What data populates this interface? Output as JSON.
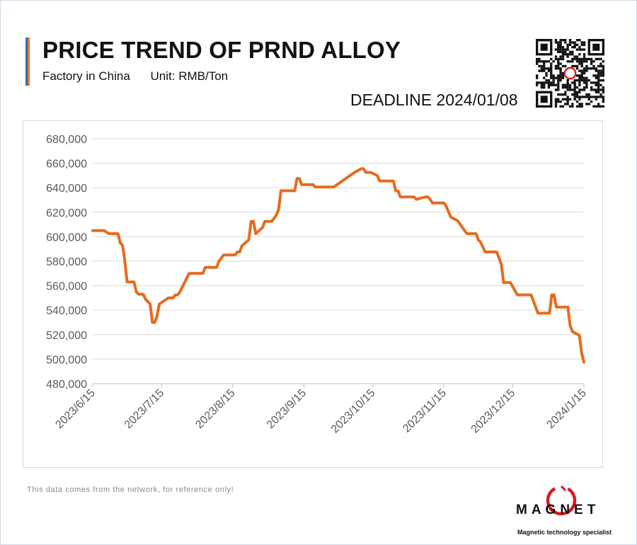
{
  "header": {
    "title": "PRICE TREND OF PRND ALLOY",
    "subtitle_left": "Factory in China",
    "subtitle_right": "Unit: RMB/Ton",
    "deadline": "DEADLINE 2024/01/08"
  },
  "footer": {
    "note": "This data comes from the network, for reference only!",
    "logo_text": "MAGNET",
    "logo_tagline": "Magnetic technology specialist"
  },
  "colors": {
    "line": "#e56b1f",
    "accent_blue": "#2f6db6",
    "accent_orange": "#e8722a",
    "grid": "#d9d9d9",
    "axis_text": "#595959",
    "logo_red": "#d71920"
  },
  "chart_data": {
    "type": "line",
    "title": "PRICE TREND OF PRND ALLOY",
    "xlabel": "",
    "ylabel": "",
    "ylim": [
      480000,
      680000
    ],
    "y_ticks": [
      480000,
      500000,
      520000,
      540000,
      560000,
      580000,
      600000,
      620000,
      640000,
      660000,
      680000
    ],
    "y_tick_labels": [
      "480,000",
      "500,000",
      "520,000",
      "540,000",
      "560,000",
      "580,000",
      "600,000",
      "620,000",
      "640,000",
      "660,000",
      "680,000"
    ],
    "xlim": [
      "2023-06-15",
      "2024-01-15"
    ],
    "x_ticks": [
      "2023-06-15",
      "2023-07-15",
      "2023-08-15",
      "2023-09-15",
      "2023-10-15",
      "2023-11-15",
      "2023-12-15",
      "2024-01-15"
    ],
    "x_tick_labels": [
      "2023/6/15",
      "2023/7/15",
      "2023/8/15",
      "2023/9/15",
      "2023/10/15",
      "2023/11/15",
      "2023/12/15",
      "2024/1/15"
    ],
    "grid": "horizontal",
    "legend": "none",
    "series": [
      {
        "points": [
          [
            "2023-06-15",
            605000
          ],
          [
            "2023-06-20",
            605000
          ],
          [
            "2023-06-22",
            602500
          ],
          [
            "2023-06-26",
            602500
          ],
          [
            "2023-06-27",
            595000
          ],
          [
            "2023-06-28",
            593000
          ],
          [
            "2023-06-29",
            580000
          ],
          [
            "2023-06-30",
            563000
          ],
          [
            "2023-07-03",
            563000
          ],
          [
            "2023-07-04",
            555000
          ],
          [
            "2023-07-05",
            553000
          ],
          [
            "2023-07-07",
            553000
          ],
          [
            "2023-07-08",
            549000
          ],
          [
            "2023-07-10",
            545000
          ],
          [
            "2023-07-11",
            530000
          ],
          [
            "2023-07-12",
            530000
          ],
          [
            "2023-07-13",
            535000
          ],
          [
            "2023-07-14",
            545000
          ],
          [
            "2023-07-18",
            550000
          ],
          [
            "2023-07-20",
            550000
          ],
          [
            "2023-07-21",
            552500
          ],
          [
            "2023-07-22",
            552500
          ],
          [
            "2023-07-23",
            555000
          ],
          [
            "2023-07-27",
            570000
          ],
          [
            "2023-08-02",
            570000
          ],
          [
            "2023-08-03",
            575000
          ],
          [
            "2023-08-08",
            575000
          ],
          [
            "2023-08-09",
            580000
          ],
          [
            "2023-08-11",
            585000
          ],
          [
            "2023-08-16",
            585000
          ],
          [
            "2023-08-17",
            587500
          ],
          [
            "2023-08-18",
            587500
          ],
          [
            "2023-08-19",
            592500
          ],
          [
            "2023-08-22",
            597500
          ],
          [
            "2023-08-23",
            612500
          ],
          [
            "2023-08-24",
            612500
          ],
          [
            "2023-08-25",
            602500
          ],
          [
            "2023-08-28",
            607500
          ],
          [
            "2023-08-29",
            612500
          ],
          [
            "2023-09-01",
            612500
          ],
          [
            "2023-09-03",
            617500
          ],
          [
            "2023-09-04",
            622500
          ],
          [
            "2023-09-05",
            637500
          ],
          [
            "2023-09-11",
            637500
          ],
          [
            "2023-09-12",
            647500
          ],
          [
            "2023-09-13",
            647500
          ],
          [
            "2023-09-14",
            642500
          ],
          [
            "2023-09-19",
            642500
          ],
          [
            "2023-09-20",
            640500
          ],
          [
            "2023-09-28",
            640500
          ],
          [
            "2023-10-07",
            652500
          ],
          [
            "2023-10-10",
            655500
          ],
          [
            "2023-10-11",
            655500
          ],
          [
            "2023-10-12",
            652500
          ],
          [
            "2023-10-14",
            652500
          ],
          [
            "2023-10-17",
            650000
          ],
          [
            "2023-10-18",
            645500
          ],
          [
            "2023-10-24",
            645500
          ],
          [
            "2023-10-25",
            637500
          ],
          [
            "2023-10-26",
            637500
          ],
          [
            "2023-10-27",
            632500
          ],
          [
            "2023-11-02",
            632500
          ],
          [
            "2023-11-03",
            630500
          ],
          [
            "2023-11-07",
            632500
          ],
          [
            "2023-11-08",
            632500
          ],
          [
            "2023-11-09",
            630500
          ],
          [
            "2023-11-10",
            627500
          ],
          [
            "2023-11-15",
            627500
          ],
          [
            "2023-11-16",
            625000
          ],
          [
            "2023-11-18",
            616000
          ],
          [
            "2023-11-21",
            613000
          ],
          [
            "2023-11-24",
            605000
          ],
          [
            "2023-11-25",
            602500
          ],
          [
            "2023-11-29",
            602500
          ],
          [
            "2023-11-30",
            597500
          ],
          [
            "2023-12-01",
            595500
          ],
          [
            "2023-12-03",
            587500
          ],
          [
            "2023-12-08",
            587500
          ],
          [
            "2023-12-10",
            577500
          ],
          [
            "2023-12-11",
            562500
          ],
          [
            "2023-12-14",
            562500
          ],
          [
            "2023-12-17",
            552500
          ],
          [
            "2023-12-23",
            552500
          ],
          [
            "2023-12-26",
            537500
          ],
          [
            "2023-12-31",
            537500
          ],
          [
            "2024-01-01",
            552500
          ],
          [
            "2024-01-02",
            552500
          ],
          [
            "2024-01-03",
            542500
          ],
          [
            "2024-01-08",
            542500
          ],
          [
            "2024-01-09",
            527500
          ],
          [
            "2024-01-10",
            522500
          ],
          [
            "2024-01-13",
            519500
          ],
          [
            "2024-01-14",
            505000
          ],
          [
            "2024-01-15",
            497500
          ],
          [
            "2024-01-21",
            497500
          ]
        ]
      }
    ]
  }
}
